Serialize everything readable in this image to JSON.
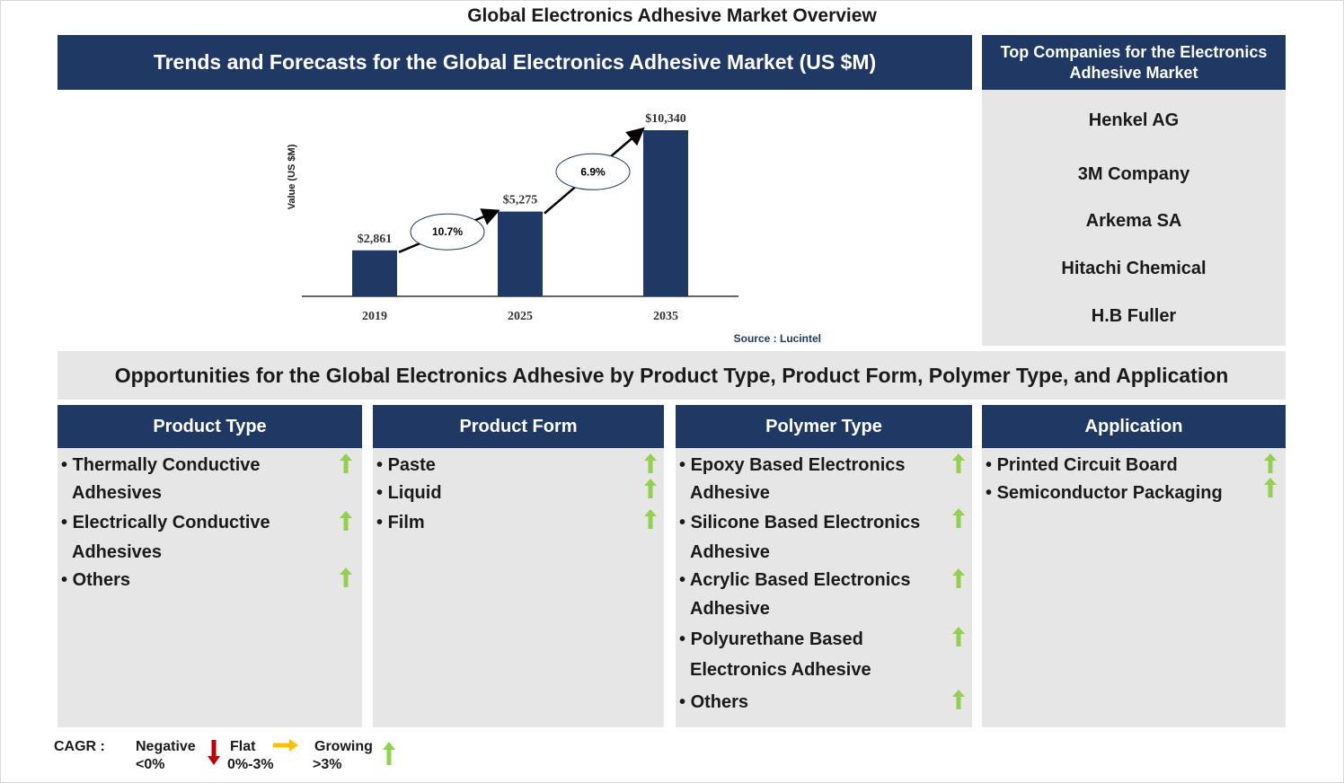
{
  "title": "Global Electronics Adhesive Market Overview",
  "trend_header": "Trends and Forecasts for the Global Electronics Adhesive Market (US $M)",
  "top_companies_header": "Top Companies for the Electronics Adhesive Market",
  "companies": [
    "Henkel AG",
    "3M Company",
    "Arkema SA",
    "Hitachi Chemical",
    "H.B Fuller"
  ],
  "opportunities_banner": "Opportunities for the Global Electronics Adhesive by Product Type, Product Form, Polymer Type, and Application",
  "segments": {
    "product_type": {
      "header": "Product Type",
      "items": [
        "Thermally Conductive",
        "Adhesives",
        "Electrically Conductive",
        "Adhesives",
        "Others"
      ]
    },
    "product_form": {
      "header": "Product Form",
      "items": [
        "Paste",
        "Liquid",
        "Film"
      ]
    },
    "polymer_type": {
      "header": "Polymer Type",
      "items": [
        "Epoxy Based Electronics",
        "Adhesive",
        "Silicone Based Electronics",
        "Adhesive",
        "Acrylic Based Electronics",
        "Adhesive",
        "Polyurethane Based",
        "Electronics Adhesive",
        "Others"
      ]
    },
    "application": {
      "header": "Application",
      "items": [
        "Printed Circuit Board",
        "Semiconductor Packaging"
      ]
    }
  },
  "legend": {
    "cagr_label": "CAGR :",
    "negative": "Negative",
    "negative_range": "<0%",
    "flat": "Flat",
    "flat_range": "0%-3%",
    "growing": "Growing",
    "growing_range": ">3%"
  },
  "colors": {
    "navy": "#1f3864",
    "panel": "#e6e6e6",
    "growing": "#92d050",
    "negative": "#c00000",
    "flat": "#ffc000"
  },
  "chart_data": {
    "type": "bar",
    "categories": [
      "2019",
      "2025",
      "2035"
    ],
    "values": [
      2861,
      5275,
      10340
    ],
    "value_labels": [
      "$2,861",
      "$5,275",
      "$10,340"
    ],
    "cagr_labels": [
      "10.7%",
      "6.9%"
    ],
    "ylabel": "Value (US $M)",
    "source": "Source : Lucintel",
    "ylim": [
      0,
      10340
    ]
  }
}
